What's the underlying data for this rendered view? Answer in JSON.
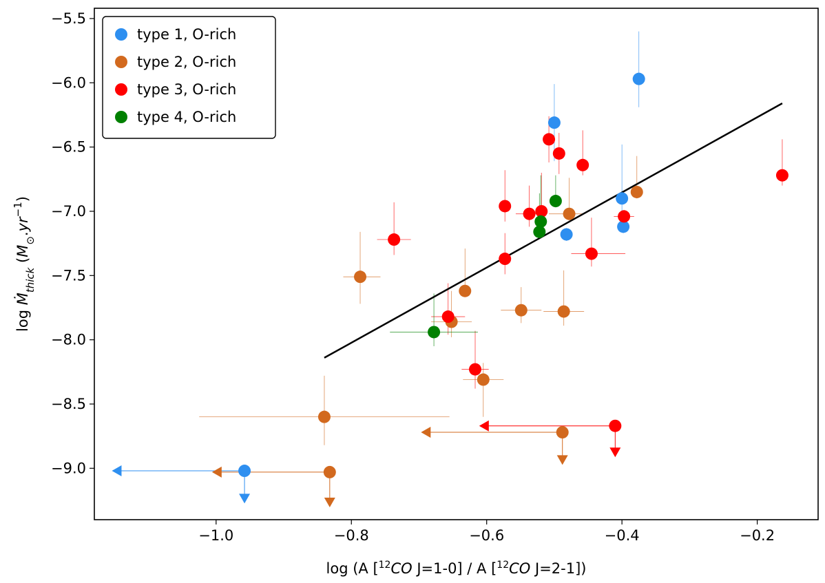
{
  "chart_data": {
    "type": "scatter",
    "title": "",
    "xlabel_parts": {
      "prefix": "log (A [",
      "sup1": "12",
      "italic1": "CO",
      "mid": " J=1-0] / A [",
      "sup2": "12",
      "italic2": "CO",
      "suffix": " J=2-1])"
    },
    "ylabel_parts": {
      "prefix": "log ",
      "mdot": "Ṁ",
      "sub": "thick",
      "open": " (",
      "m": "M",
      "sun": "⊙",
      "dot": ".",
      "yr": "yr",
      "exp": "−1",
      "close": ")"
    },
    "xlim": [
      -1.18,
      -0.11
    ],
    "ylim": [
      -9.4,
      -5.42
    ],
    "xticks": [
      -1.0,
      -0.8,
      -0.6,
      -0.4,
      -0.2
    ],
    "xtick_labels": [
      "−1.0",
      "−0.8",
      "−0.6",
      "−0.4",
      "−0.2"
    ],
    "yticks": [
      -5.5,
      -6.0,
      -6.5,
      -7.0,
      -7.5,
      -8.0,
      -8.5,
      -9.0
    ],
    "ytick_labels": [
      "−5.5",
      "−6.0",
      "−6.5",
      "−7.0",
      "−7.5",
      "−8.0",
      "−8.5",
      "−9.0"
    ],
    "legend_position": "top-left",
    "fit_line": {
      "x": [
        -0.84,
        -0.163
      ],
      "y": [
        -8.14,
        -6.16
      ],
      "color": "#000000"
    },
    "series": [
      {
        "name": "type 1, O-rich",
        "color": "#2e8ff0",
        "points": [
          {
            "x": -0.375,
            "y": -5.97,
            "yerr": [
              0.22,
              0.37
            ]
          },
          {
            "x": -0.5,
            "y": -6.31,
            "yerr": [
              0.3,
              0.3
            ]
          },
          {
            "x": -0.4,
            "y": -6.9,
            "yerr": [
              0.1,
              0.42
            ]
          },
          {
            "x": -0.398,
            "y": -7.12,
            "yerr": [
              0.05,
              0.05
            ]
          },
          {
            "x": -0.482,
            "y": -7.18,
            "yerr": [
              0.05,
              0.05
            ]
          },
          {
            "x": -0.958,
            "y": -9.02,
            "xlimit": -1.15,
            "ylimit": -9.22
          }
        ]
      },
      {
        "name": "type 2, O-rich",
        "color": "#d2691e",
        "points": [
          {
            "x": -0.378,
            "y": -6.85,
            "yerr": [
              0.05,
              0.28
            ]
          },
          {
            "x": -0.478,
            "y": -7.02,
            "yerr": [
              0.05,
              0.28
            ],
            "xerr": [
              0.03,
              0.02
            ]
          },
          {
            "x": -0.787,
            "y": -7.51,
            "yerr": [
              0.21,
              0.35
            ],
            "xerr": [
              0.025,
              0.03
            ]
          },
          {
            "x": -0.632,
            "y": -7.62,
            "yerr": [
              0.03,
              0.33
            ]
          },
          {
            "x": -0.549,
            "y": -7.77,
            "yerr": [
              0.1,
              0.18
            ],
            "xerr": [
              0.03,
              0.03
            ]
          },
          {
            "x": -0.486,
            "y": -7.78,
            "yerr": [
              0.11,
              0.32
            ],
            "xerr": [
              0.03,
              0.03
            ]
          },
          {
            "x": -0.652,
            "y": -7.86,
            "yerr": [
              0.12,
              0.24
            ],
            "xerr": [
              0.03,
              0.03
            ]
          },
          {
            "x": -0.605,
            "y": -8.31,
            "yerr": [
              0.29,
              0.13
            ],
            "xerr": [
              0.03,
              0.03
            ]
          },
          {
            "x": -0.84,
            "y": -8.6,
            "yerr": [
              0.22,
              0.32
            ],
            "xerr": [
              0.185,
              0.185
            ]
          },
          {
            "x": -0.488,
            "y": -8.72,
            "xlimit": -0.693,
            "ylimit": -8.92
          },
          {
            "x": -0.832,
            "y": -9.03,
            "xlimit": -1.002,
            "ylimit": -9.25
          }
        ]
      },
      {
        "name": "type 3, O-rich",
        "color": "#ff0000",
        "points": [
          {
            "x": -0.163,
            "y": -6.72,
            "yerr": [
              0.08,
              0.28
            ]
          },
          {
            "x": -0.508,
            "y": -6.44,
            "yerr": [
              0.18,
              0.18
            ]
          },
          {
            "x": -0.493,
            "y": -6.55,
            "yerr": [
              0.16,
              0.16
            ]
          },
          {
            "x": -0.458,
            "y": -6.64,
            "yerr": [
              0.08,
              0.27
            ]
          },
          {
            "x": -0.573,
            "y": -6.96,
            "yerr": [
              0.12,
              0.28
            ]
          },
          {
            "x": -0.519,
            "y": -7.0,
            "yerr": [
              0.1,
              0.3
            ]
          },
          {
            "x": -0.537,
            "y": -7.02,
            "yerr": [
              0.1,
              0.22
            ],
            "xerr": [
              0.02,
              0.02
            ]
          },
          {
            "x": -0.397,
            "y": -7.04,
            "yerr": [
              0.05,
              0.05
            ],
            "xerr": [
              0.015,
              0.015
            ]
          },
          {
            "x": -0.737,
            "y": -7.22,
            "yerr": [
              0.12,
              0.29
            ],
            "xerr": [
              0.025,
              0.025
            ]
          },
          {
            "x": -0.445,
            "y": -7.33,
            "yerr": [
              0.1,
              0.28
            ],
            "xerr": [
              0.03,
              0.05
            ]
          },
          {
            "x": -0.573,
            "y": -7.37,
            "yerr": [
              0.12,
              0.2
            ]
          },
          {
            "x": -0.657,
            "y": -7.82,
            "yerr": [
              0.14,
              0.26
            ],
            "xerr": [
              0.025,
              0.025
            ]
          },
          {
            "x": -0.617,
            "y": -8.23,
            "yerr": [
              0.15,
              0.3
            ],
            "xerr": [
              0.02,
              0.02
            ]
          },
          {
            "x": -0.41,
            "y": -8.67,
            "xlimit": -0.607,
            "ylimit": -8.86
          }
        ]
      },
      {
        "name": "type 4, O-rich",
        "color": "#008000",
        "points": [
          {
            "x": -0.498,
            "y": -6.92,
            "yerr": [
              0.05,
              0.2
            ]
          },
          {
            "x": -0.52,
            "y": -7.08,
            "yerr": [
              0.06,
              0.36
            ]
          },
          {
            "x": -0.522,
            "y": -7.16,
            "yerr": [
              0.05,
              0.3
            ]
          },
          {
            "x": -0.678,
            "y": -7.94,
            "yerr": [
              0.11,
              0.3
            ],
            "xerr": [
              0.065,
              0.065
            ]
          }
        ]
      }
    ]
  }
}
